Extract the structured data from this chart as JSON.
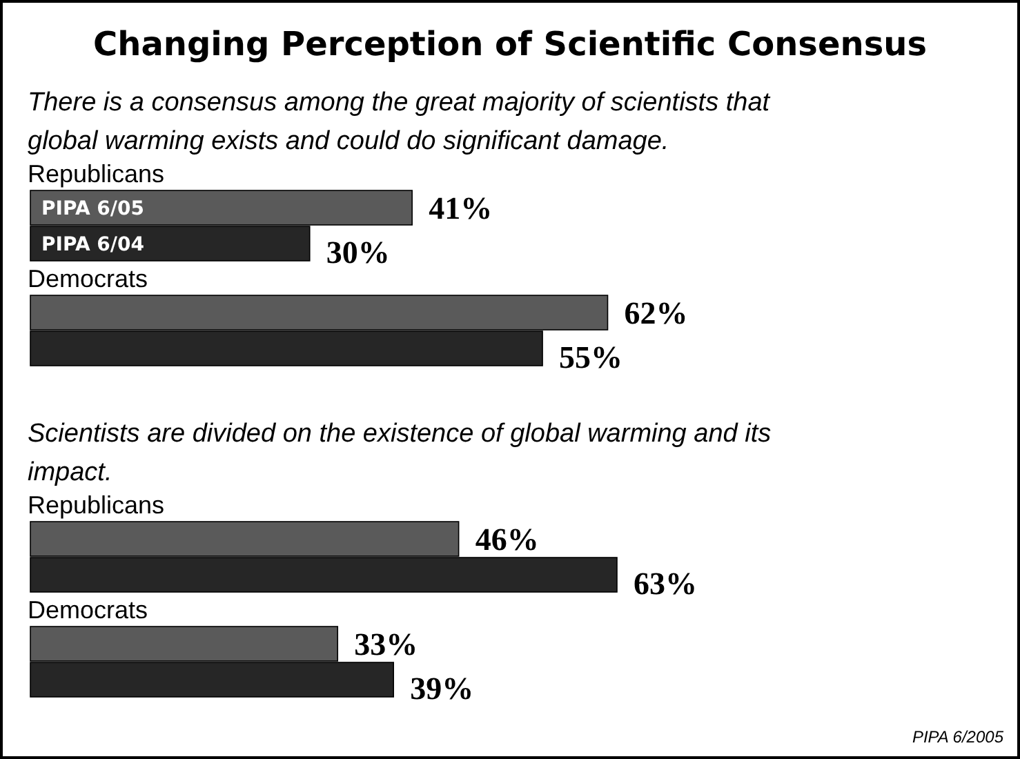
{
  "chart_data": [
    {
      "type": "bar",
      "orientation": "horizontal",
      "title": "Changing Perception of Scientific Consensus",
      "subtitle": "There is a consensus among the great majority of scientists that global warming exists and could do significant damage.",
      "categories": [
        "Republicans",
        "Democrats"
      ],
      "series": [
        {
          "name": "PIPA 6/05",
          "color": "#5a5a5a",
          "values": [
            41,
            62
          ],
          "value_labels": [
            "41%",
            "62%"
          ]
        },
        {
          "name": "PIPA 6/04",
          "color": "#262626",
          "values": [
            30,
            55
          ],
          "value_labels": [
            "30%",
            "55%"
          ]
        }
      ],
      "legend": "left"
    },
    {
      "type": "bar",
      "orientation": "horizontal",
      "subtitle": "Scientists are divided on the existence of global warming and its impact.",
      "categories": [
        "Republicans",
        "Democrats"
      ],
      "series": [
        {
          "color": "#5a5a5a",
          "values": [
            46,
            33
          ],
          "value_labels": [
            "46%",
            "33%"
          ]
        },
        {
          "color": "#262626",
          "values": [
            63,
            39
          ],
          "value_labels": [
            "63%",
            "39%"
          ]
        }
      ],
      "annotations": [
        "PIPA 6/2005"
      ]
    }
  ]
}
